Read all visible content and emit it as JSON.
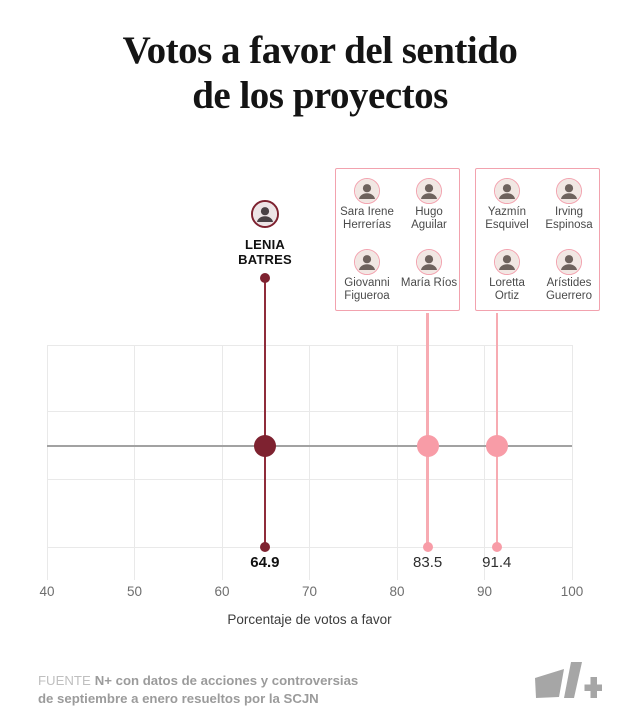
{
  "title": {
    "line1": "Votos a favor del sentido",
    "line2": "de los proyectos"
  },
  "lenia": {
    "name_line1": "LENIA",
    "name_line2": "BATRES",
    "value": 64.9
  },
  "groups": [
    {
      "members": [
        "Sara Irene Herrerías",
        "Hugo Aguilar",
        "Giovanni Figueroa",
        "María Ríos"
      ],
      "value": 83.5
    },
    {
      "members": [
        "Yazmín Esquivel",
        "Irving Espinosa",
        "Loretta Ortiz",
        "Arístides Guerrero"
      ],
      "value": 91.4
    }
  ],
  "chart_data": {
    "type": "scatter",
    "subtype": "lollipop",
    "title": "Votos a favor del sentido de los proyectos",
    "xlabel": "Porcentaje de votos a favor",
    "xlim": [
      40,
      100
    ],
    "x_ticks": [
      40,
      50,
      60,
      70,
      80,
      90,
      100
    ],
    "grid": true,
    "reference_line": "horizontal center line through value dots",
    "series": [
      {
        "name": "Lenia Batres",
        "value": 64.9,
        "color": "#7E2230",
        "stem_color": "#8F2C3A",
        "label_bold": true
      },
      {
        "name": "Sara Irene Herrerías, Hugo Aguilar, Giovanni Figueroa, María Ríos",
        "value": 83.5,
        "color": "#F89CA7",
        "stem_color": "#F7ABB2",
        "label_bold": false
      },
      {
        "name": "Yazmín Esquivel, Irving Espinosa, Loretta Ortiz, Arístides Guerrero",
        "value": 91.4,
        "color": "#F89CA7",
        "stem_color": "#F7ABB2",
        "label_bold": false
      }
    ]
  },
  "axis": {
    "label": "Porcentaje de votos a favor"
  },
  "footer": {
    "source_label": "FUENTE",
    "line1_rest": "N+ con datos de acciones y controversias",
    "line2": "de septiembre a enero resueltos por la SCJN",
    "logo_text": "N+"
  },
  "colors": {
    "dark": "#7E2230",
    "dark_stem": "#8F2C3A",
    "pink": "#F89CA7",
    "pink_stem": "#F7ABB2",
    "pink_border": "#F2A2AE",
    "grid": "#E9E9E9",
    "reference_line": "#A2A2A2",
    "tick_text": "#6E6E6E",
    "footer_text": "#9B9B9B",
    "logo": "#A6A6A6"
  }
}
